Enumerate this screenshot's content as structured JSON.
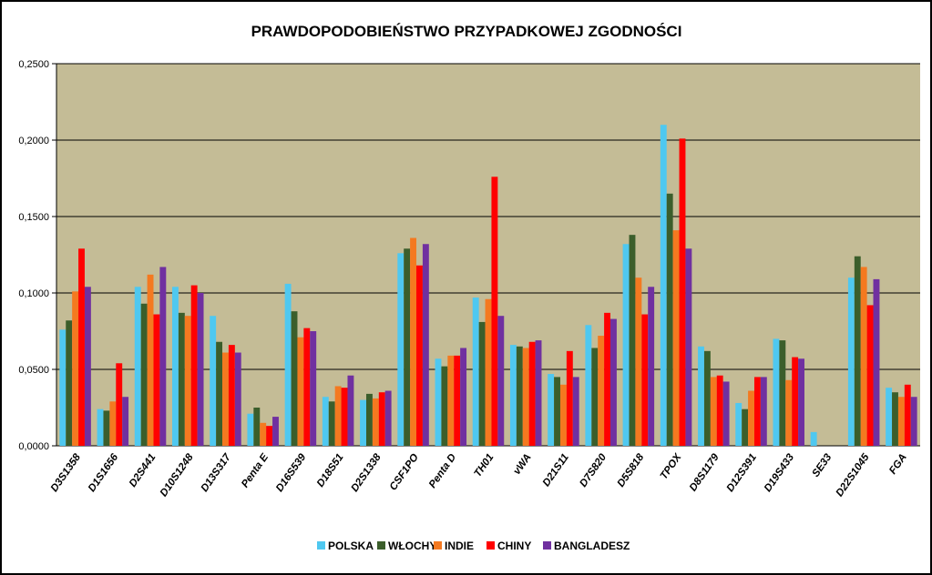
{
  "chart_data": {
    "type": "bar",
    "title": "PRAWDOPODOBIEŃSTWO PRZYPADKOWEJ ZGODNOŚCI",
    "xlabel": "",
    "ylabel": "",
    "ylim": [
      0,
      0.25
    ],
    "yticks": [
      "0,0000",
      "0,0500",
      "0,1000",
      "0,1500",
      "0,2000",
      "0,2500"
    ],
    "ytick_values": [
      0,
      0.05,
      0.1,
      0.15,
      0.2,
      0.25
    ],
    "grid": true,
    "legend_position": "bottom",
    "plot_background": "#C4BC96",
    "categories": [
      "D3S1358",
      "D1S1656",
      "D2S441",
      "D10S1248",
      "D13S317",
      "Penta E",
      "D16S539",
      "D18S51",
      "D2S1338",
      "CSF1PO",
      "Penta D",
      "TH01",
      "vWA",
      "D21S11",
      "D7S820",
      "D5S818",
      "TPOX",
      "D8S1179",
      "D12S391",
      "D19S433",
      "SE33",
      "D22S1045",
      "FGA"
    ],
    "series": [
      {
        "name": "POLSKA",
        "color": "#4FC8F0",
        "values": [
          0.076,
          0.024,
          0.104,
          0.104,
          0.085,
          0.021,
          0.106,
          0.032,
          0.03,
          0.126,
          0.057,
          0.097,
          0.066,
          0.047,
          0.079,
          0.132,
          0.21,
          0.065,
          0.028,
          0.07,
          0.009,
          0.11,
          0.038
        ]
      },
      {
        "name": "WŁOCHY",
        "color": "#3B5E2B",
        "values": [
          0.082,
          0.023,
          0.093,
          0.087,
          0.068,
          0.025,
          0.088,
          0.029,
          0.034,
          0.129,
          0.052,
          0.081,
          0.065,
          0.045,
          0.064,
          0.138,
          0.165,
          0.062,
          0.024,
          0.069,
          0,
          0.124,
          0.035
        ]
      },
      {
        "name": "INDIE",
        "color": "#F47920",
        "values": [
          0.101,
          0.029,
          0.112,
          0.085,
          0.061,
          0.015,
          0.071,
          0.039,
          0.031,
          0.136,
          0.059,
          0.096,
          0.064,
          0.04,
          0.072,
          0.11,
          0.141,
          0.045,
          0.036,
          0.043,
          0,
          0.117,
          0.032
        ]
      },
      {
        "name": "CHINY",
        "color": "#FF0000",
        "values": [
          0.129,
          0.054,
          0.086,
          0.105,
          0.066,
          0.013,
          0.077,
          0.038,
          0.035,
          0.118,
          0.059,
          0.176,
          0.068,
          0.062,
          0.087,
          0.086,
          0.201,
          0.046,
          0.045,
          0.058,
          0,
          0.092,
          0.04
        ]
      },
      {
        "name": "BANGLADESZ",
        "color": "#7030A0",
        "values": [
          0.104,
          0.032,
          0.117,
          0.1,
          0.061,
          0.019,
          0.075,
          0.046,
          0.036,
          0.132,
          0.064,
          0.085,
          0.069,
          0.045,
          0.083,
          0.104,
          0.129,
          0.042,
          0.045,
          0.057,
          0,
          0.109,
          0.032
        ]
      }
    ]
  }
}
